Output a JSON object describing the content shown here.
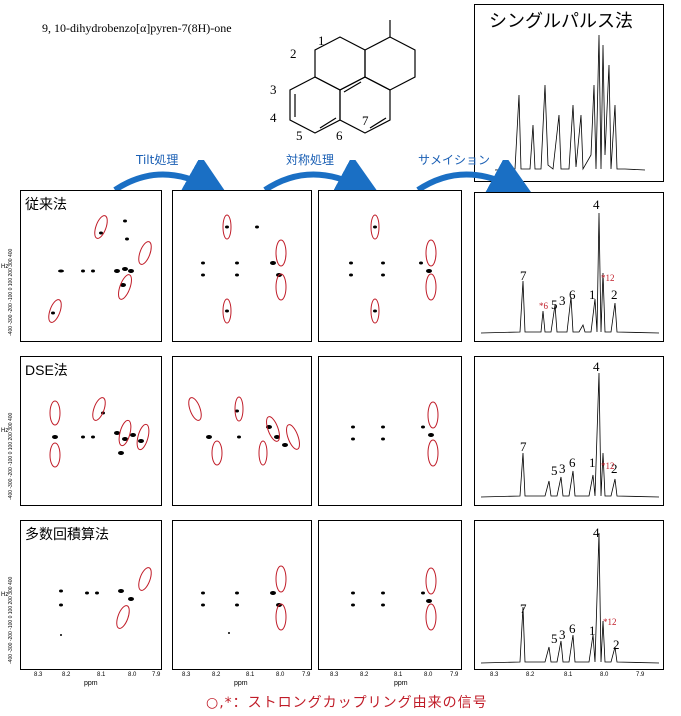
{
  "compound_name": "9, 10-dihydrobenzo[α]pyren-7(8H)-one",
  "structure_labels": [
    "1",
    "2",
    "3",
    "4",
    "5",
    "6",
    "7"
  ],
  "single_pulse_title": "シングルパルス法",
  "arrows": [
    "Tilt処理",
    "対称処理",
    "サメイション"
  ],
  "rows": [
    "従来法",
    "DSE法",
    "多数回積算法"
  ],
  "axis_ticks": [
    "8.3",
    "8.2",
    "8.1",
    "8.0",
    "7.9"
  ],
  "ppm_label": "ppm",
  "yaxis_text": "-400 -300 -200 -100 0 100 200 300 400",
  "y_unit": "Hz",
  "peak_labels": [
    "7",
    "5",
    "3",
    "6",
    "1",
    "4",
    "2"
  ],
  "star_labels": [
    "*6",
    "*12"
  ],
  "footer": "○,*：ストロングカップリング由来の信号",
  "colors": {
    "arrow": "#1a6fc4",
    "highlight": "#c01c28"
  }
}
